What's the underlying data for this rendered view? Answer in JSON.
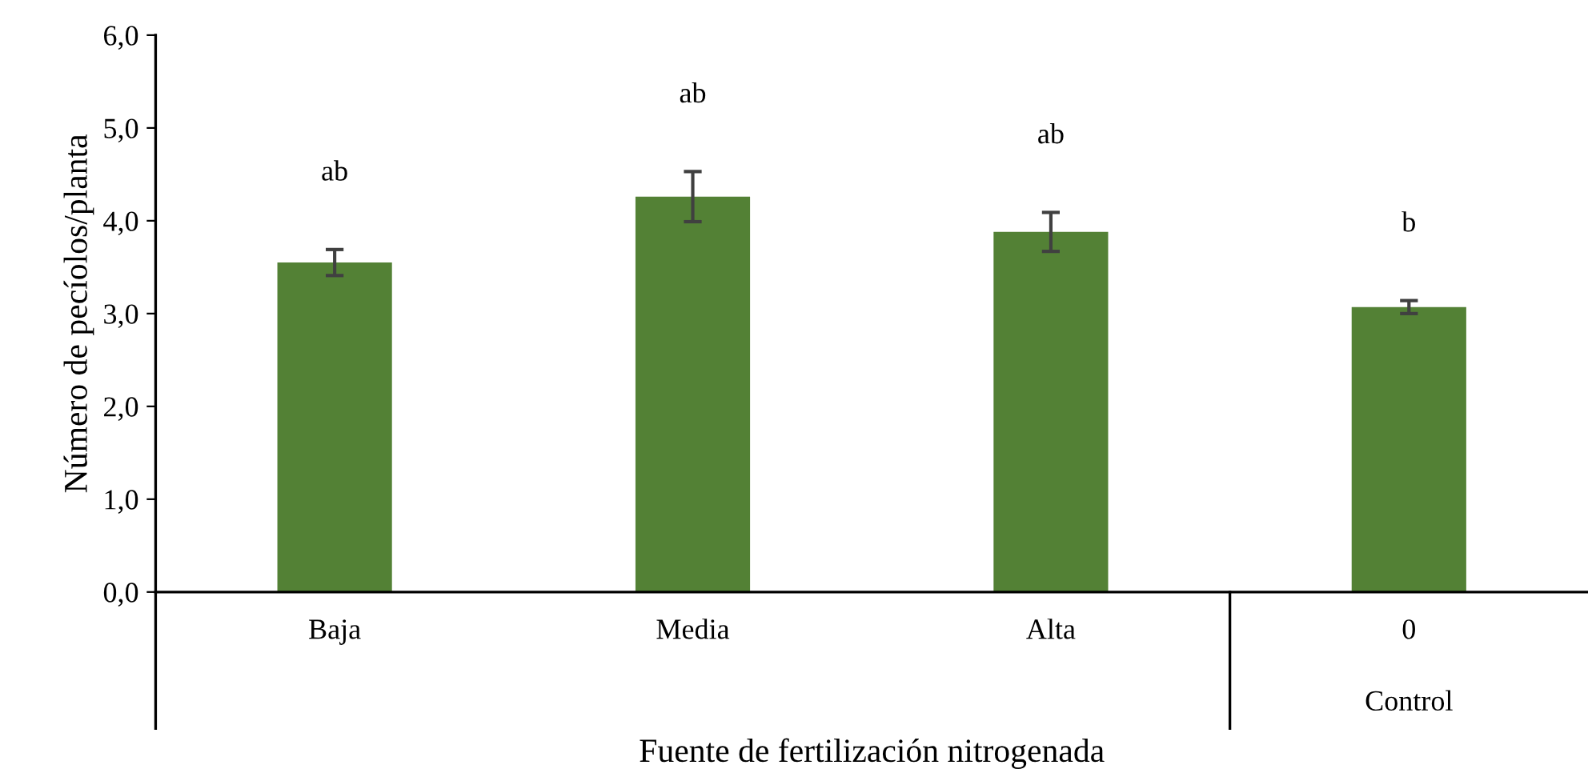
{
  "chart_data": {
    "type": "bar",
    "xlabel": "Fuente de fertilización nitrogenada",
    "ylabel": "Número de pecíolos/planta",
    "categories": [
      "Baja",
      "Media",
      "Alta",
      "0"
    ],
    "values": [
      3.55,
      4.26,
      3.88,
      3.07
    ],
    "errors": [
      0.14,
      0.27,
      0.21,
      0.07
    ],
    "color": "#538135",
    "ylim": [
      0,
      6
    ],
    "yticks": [
      {
        "value": 0,
        "label": "0,0"
      },
      {
        "value": 1,
        "label": "1,0"
      },
      {
        "value": 2,
        "label": "2,0"
      },
      {
        "value": 3,
        "label": "3,0"
      },
      {
        "value": 4,
        "label": "4,0"
      },
      {
        "value": 5,
        "label": "5,0"
      },
      {
        "value": 6,
        "label": "6,0"
      }
    ],
    "grid": false,
    "annotations": [
      "ab",
      "ab",
      "ab",
      "b",
      "Control"
    ]
  }
}
